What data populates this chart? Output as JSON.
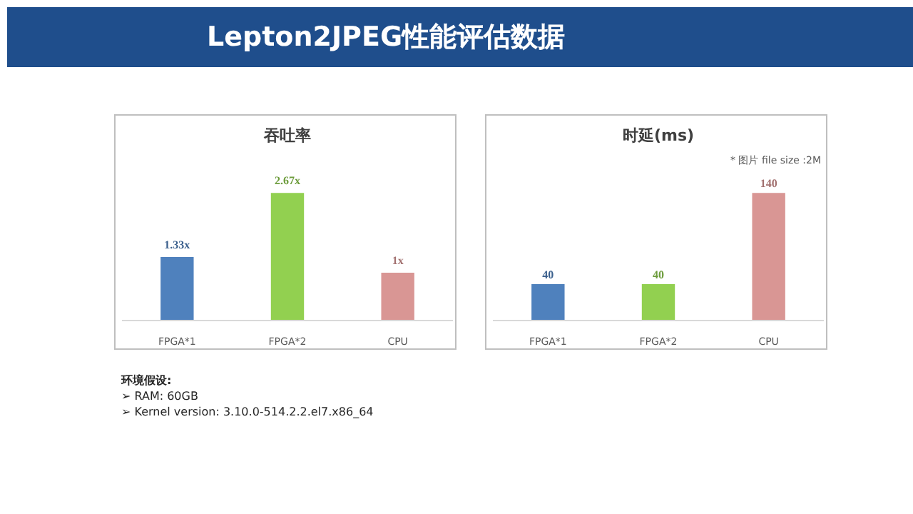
{
  "chart_data": [
    {
      "type": "bar",
      "title": "吞吐率",
      "categories": [
        "FPGA*1",
        "FPGA*2",
        "CPU"
      ],
      "values": [
        1.33,
        2.67,
        1
      ],
      "colors": [
        "#4f81bd",
        "#92d050",
        "#d99694"
      ],
      "value_labels": [
        "1.33x",
        "2.67x",
        "1x"
      ],
      "grid": false,
      "annotations": [
        "Lepton2JPEG性能评估数据",
        "环境假设:",
        "➢ RAM: 60GB",
        "➢ Kernel version: 3.10.0-514.2.2.el7.x86_64"
      ]
    },
    {
      "type": "bar",
      "title": "时延(ms)",
      "categories": [
        "FPGA*1",
        "FPGA*2",
        "CPU"
      ],
      "values": [
        40,
        40,
        140
      ],
      "colors": [
        "#4f81bd",
        "#92d050",
        "#d99694"
      ],
      "data_labels": true,
      "grid": false,
      "annotations": [
        "* 图片 file size :2M"
      ]
    }
  ]
}
